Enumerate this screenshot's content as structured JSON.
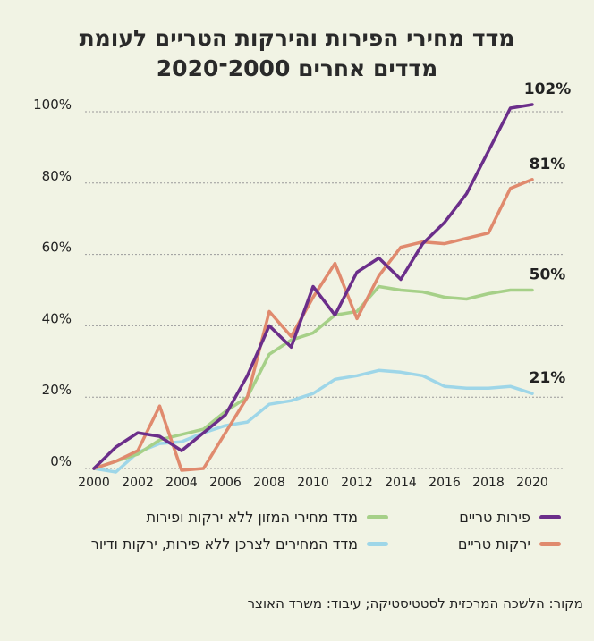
{
  "chart_data": {
    "type": "line",
    "title_lines": [
      "מדד מחירי הפירות והירקות הטריים לעומת",
      "מדדים אחרים 2000־2020"
    ],
    "x": [
      2000,
      2001,
      2002,
      2003,
      2004,
      2005,
      2006,
      2007,
      2008,
      2009,
      2010,
      2011,
      2012,
      2013,
      2014,
      2015,
      2016,
      2017,
      2018,
      2019,
      2020
    ],
    "x_ticks": [
      "2000",
      "2002",
      "2004",
      "2006",
      "2008",
      "2010",
      "2012",
      "2014",
      "2016",
      "2018",
      "2020"
    ],
    "y_ticks": [
      "0%",
      "20%",
      "40%",
      "60%",
      "80%",
      "100%"
    ],
    "ylim": [
      0,
      100
    ],
    "grid": true,
    "series": [
      {
        "name": "פירות טריים",
        "color": "#6b2e8a",
        "values": [
          0,
          6,
          10,
          9,
          5,
          10,
          15,
          26,
          40,
          34,
          51,
          43,
          55,
          59,
          53,
          63,
          69,
          77,
          89,
          101,
          102
        ],
        "end_label": "102%"
      },
      {
        "name": "ירקות טריים",
        "color": "#e08a6e",
        "values": [
          0,
          2,
          5,
          17.5,
          -0.5,
          0,
          10,
          20,
          44,
          37,
          48,
          57.5,
          42,
          54,
          62,
          63.5,
          63,
          64.5,
          66,
          78.5,
          81
        ],
        "end_label": "81%"
      },
      {
        "name": "מדד מחירי המזון ללא ירקות ופירות",
        "color": "#a6d088",
        "values": [
          0,
          2,
          4,
          8,
          9.5,
          11,
          16,
          20,
          32,
          36,
          38,
          43,
          44,
          51,
          50,
          49.5,
          48,
          47.5,
          49,
          50,
          50
        ],
        "end_label": "50%"
      },
      {
        "name": "מדד המחירים לצרכן ללא פירות, ירקות ודיור",
        "color": "#9ed6e8",
        "values": [
          0,
          -1,
          4.5,
          7,
          7.5,
          10,
          12,
          13,
          18,
          19,
          21,
          25,
          26,
          27.5,
          27,
          26,
          23,
          22.5,
          22.5,
          23,
          21
        ],
        "end_label": "21%"
      }
    ]
  },
  "source_note": "מקור: הלשכה המרכזית לסטטיסטיקה; עיבוד: משרד האוצר"
}
